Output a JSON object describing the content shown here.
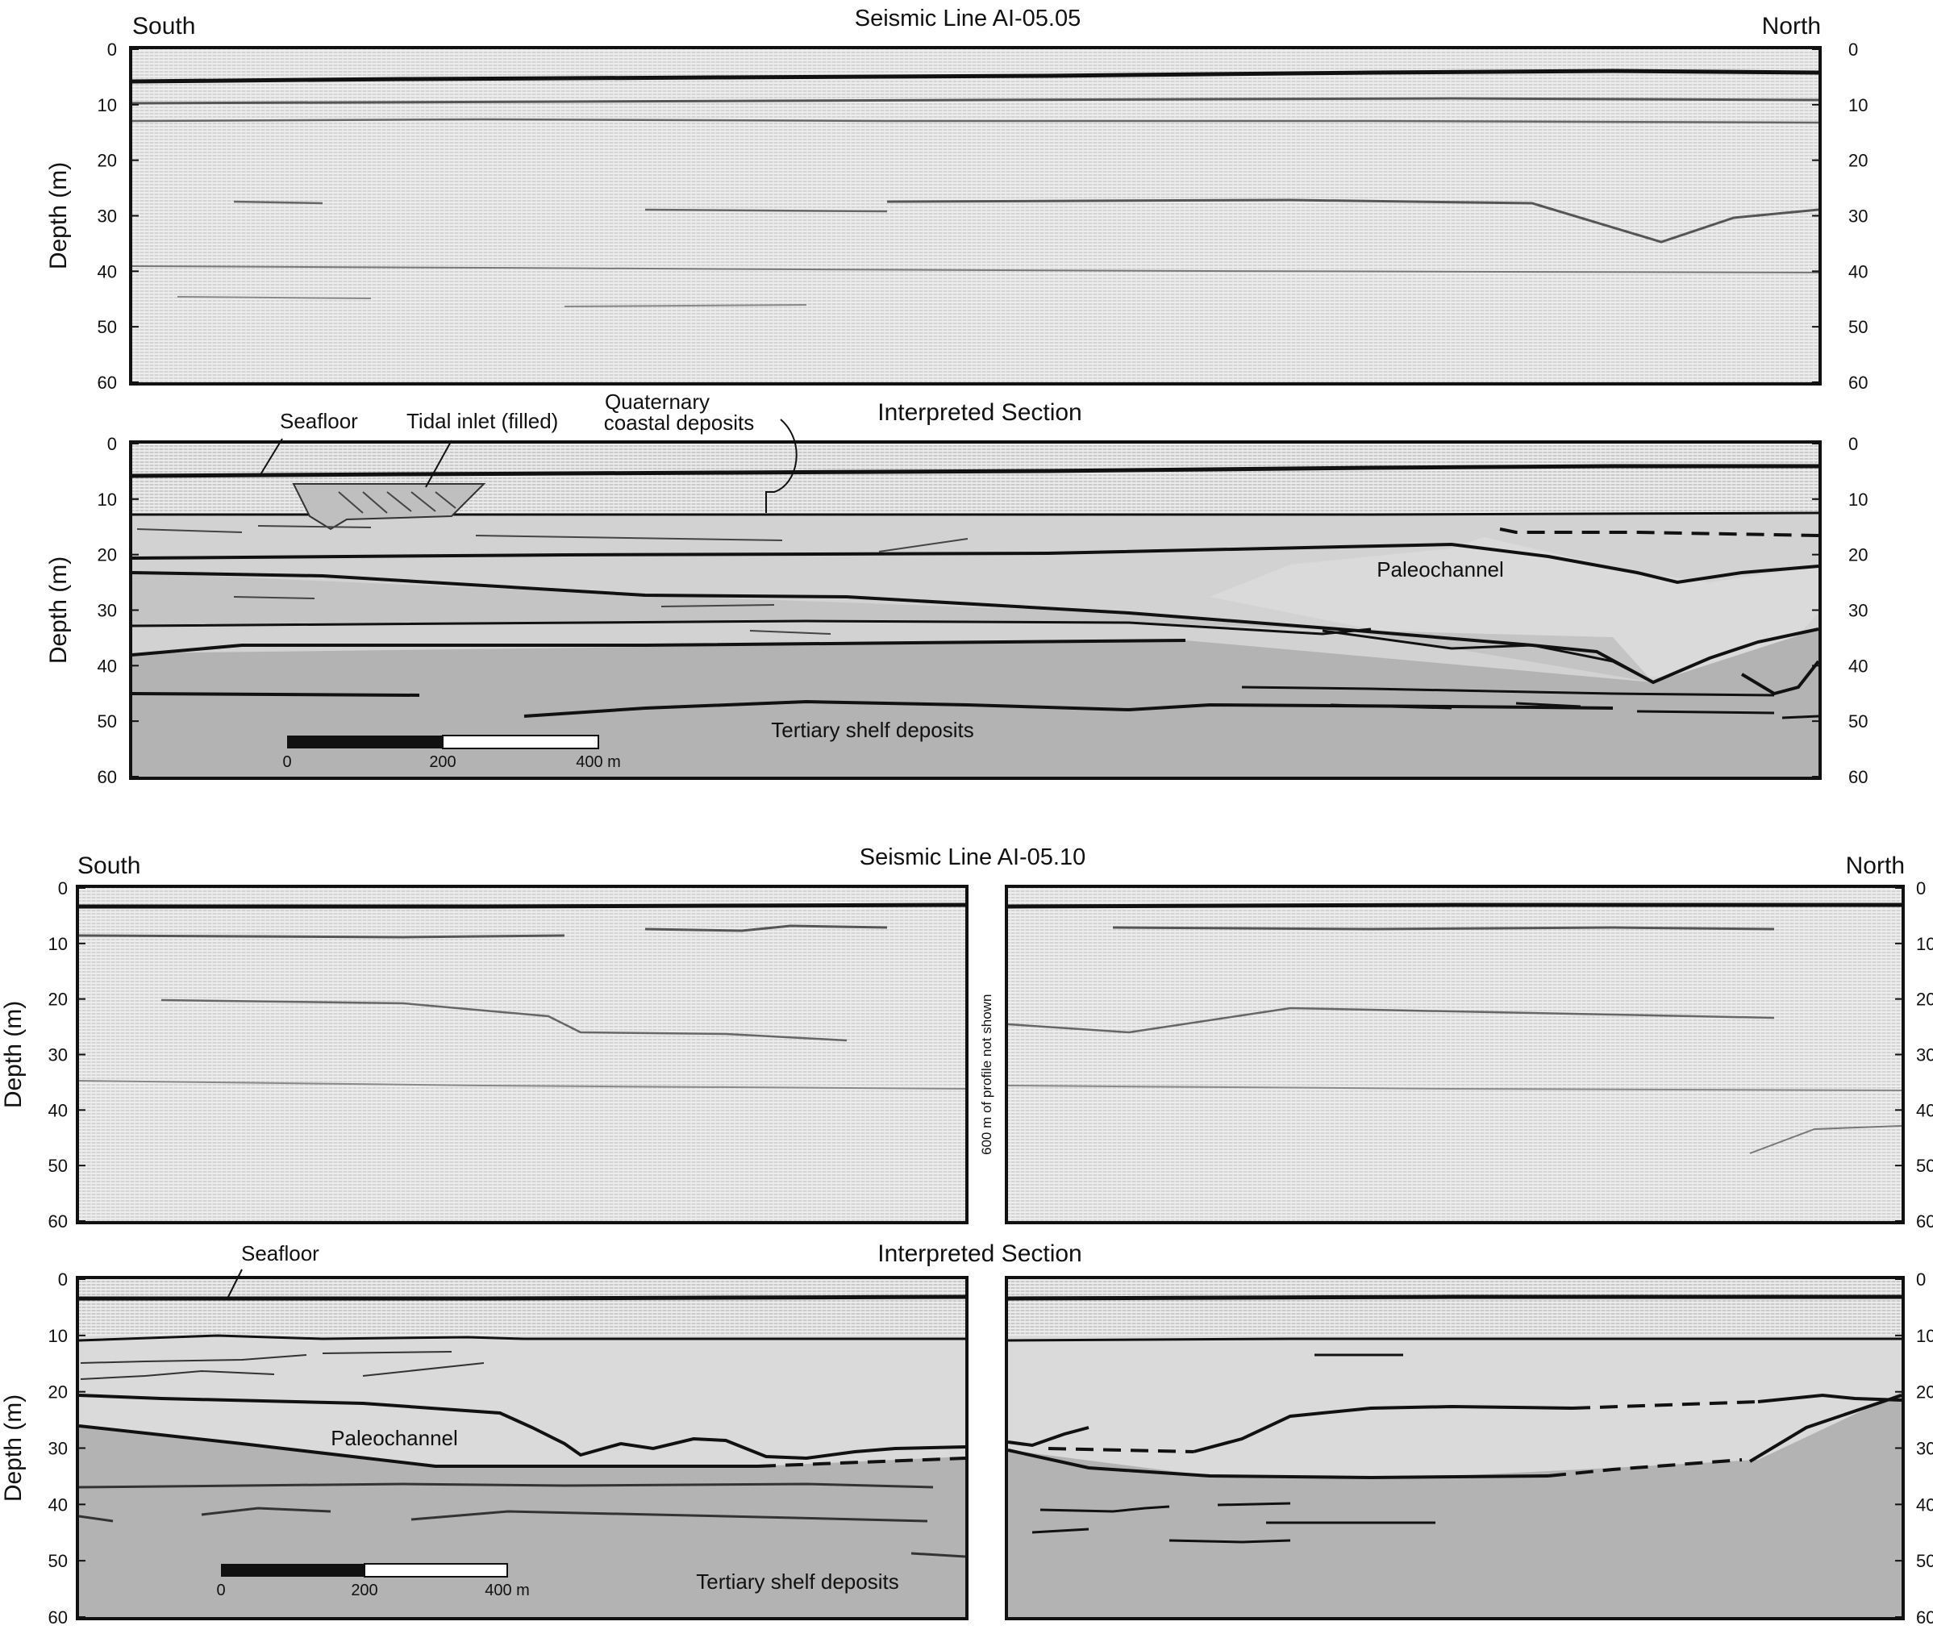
{
  "line1": {
    "title": "Seismic Line AI-05.05",
    "left_label": "South",
    "right_label": "North",
    "interpreted_title": "Interpreted Section",
    "depth_label": "Depth (m)",
    "ticks": [
      "0",
      "10",
      "20",
      "30",
      "40",
      "50",
      "60"
    ],
    "annotations": {
      "seafloor": "Seafloor",
      "tidal_inlet": "Tidal inlet (filled)",
      "quaternary_1": "Quaternary",
      "quaternary_2": "coastal deposits",
      "paleochannel": "Paleochannel",
      "tertiary": "Tertiary shelf deposits"
    },
    "scale": [
      "0",
      "200",
      "400 m"
    ]
  },
  "line2": {
    "title": "Seismic Line AI-05.10",
    "left_label": "South",
    "right_label": "North",
    "interpreted_title": "Interpreted Section",
    "depth_label": "Depth (m)",
    "ticks": [
      "0",
      "10",
      "20",
      "30",
      "40",
      "50",
      "60"
    ],
    "gap_note": "600 m of profile not shown",
    "annotations": {
      "seafloor": "Seafloor",
      "paleochannel": "Paleochannel",
      "tertiary": "Tertiary shelf deposits"
    },
    "scale": [
      "0",
      "200",
      "400 m"
    ]
  }
}
